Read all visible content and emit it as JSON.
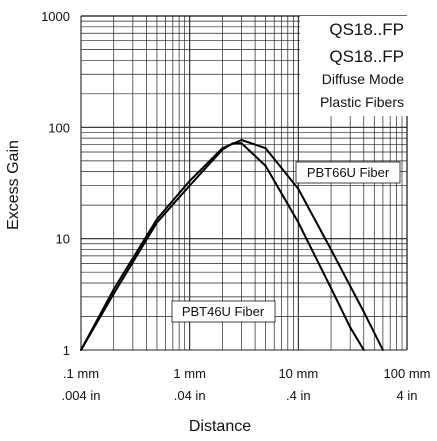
{
  "chart_data": {
    "type": "line",
    "scale": {
      "x": "log",
      "y": "log"
    },
    "xlim": [
      0.1,
      100
    ],
    "ylim": [
      1,
      1000
    ],
    "grid": true,
    "xlabel": "Distance",
    "ylabel": "Excess Gain",
    "x_ticks": [
      {
        "value": 0.1,
        "label_mm": ".1 mm",
        "label_in": ".004 in"
      },
      {
        "value": 1,
        "label_mm": "1 mm",
        "label_in": ".04 in"
      },
      {
        "value": 10,
        "label_mm": "10 mm",
        "label_in": ".4 in"
      },
      {
        "value": 100,
        "label_mm": "100 mm",
        "label_in": "4 in"
      }
    ],
    "y_ticks": [
      {
        "value": 1,
        "label": "1"
      },
      {
        "value": 10,
        "label": "10"
      },
      {
        "value": 100,
        "label": "100"
      },
      {
        "value": 1000,
        "label": "1000"
      }
    ],
    "legend_lines": [
      "QS18..FP",
      "QS18..FP",
      "Diffuse Mode",
      "Plastic Fibers"
    ],
    "series": [
      {
        "name": "PBT46U Fiber",
        "x": [
          0.1,
          0.2,
          0.5,
          1,
          2,
          2.5,
          3,
          5,
          10,
          20,
          30,
          40
        ],
        "y": [
          1,
          3.2,
          14,
          30,
          63,
          72,
          72,
          45,
          14,
          3.6,
          1.6,
          1
        ]
      },
      {
        "name": "PBT66U Fiber",
        "x": [
          0.1,
          0.2,
          0.5,
          1,
          2,
          3,
          5,
          10,
          20,
          40,
          60
        ],
        "y": [
          1,
          3.5,
          15,
          33,
          65,
          77,
          65,
          28,
          8,
          2.2,
          1
        ]
      }
    ]
  }
}
